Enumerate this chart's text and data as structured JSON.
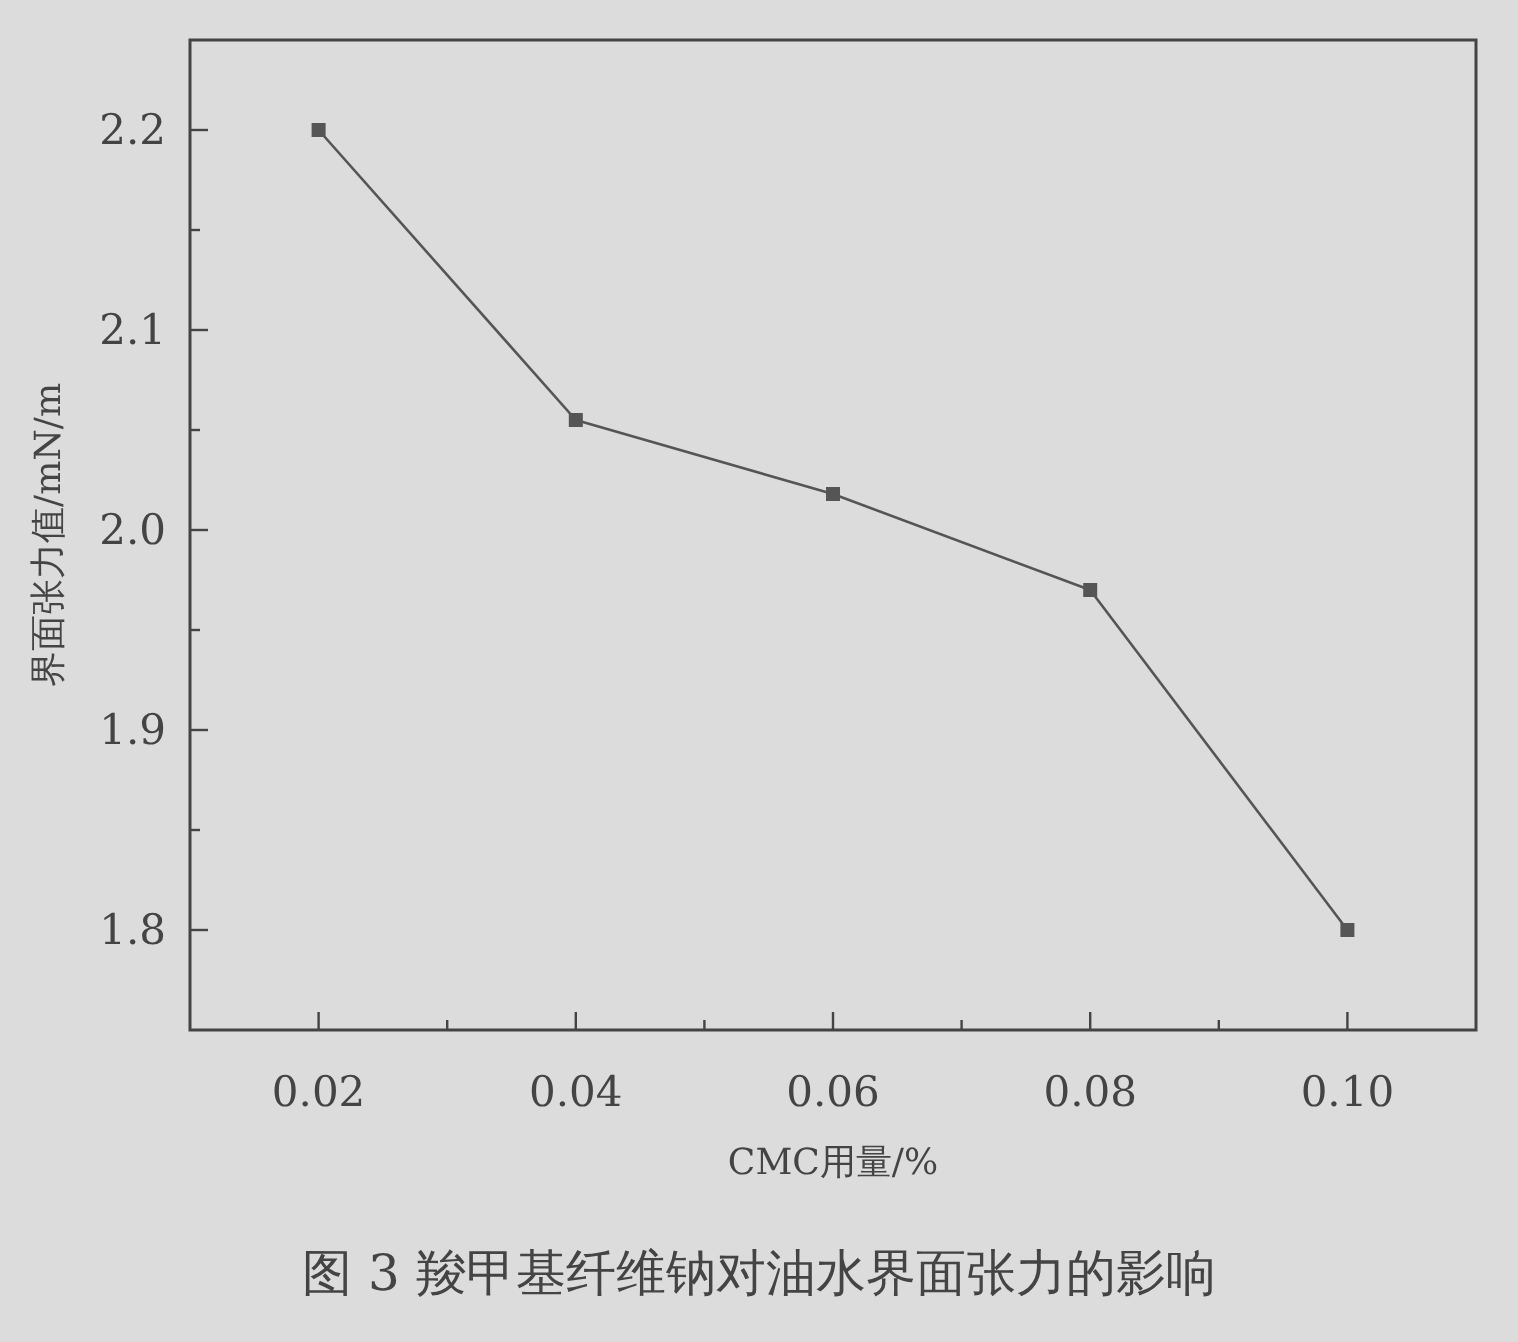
{
  "chart_data": {
    "type": "line",
    "title": "图 3 羧甲基纤维钠对油水界面张力的影响",
    "xlabel": "CMC用量/%",
    "ylabel": "界面张力值/mN/m",
    "x": [
      0.02,
      0.04,
      0.06,
      0.08,
      0.1
    ],
    "series": [
      {
        "color": "#555555",
        "values": [
          2.2,
          2.055,
          2.018,
          1.97,
          1.8
        ]
      }
    ],
    "marker": "square",
    "line_style": "solid",
    "grid": false,
    "xlim": [
      0.01,
      0.11
    ],
    "xticks": [
      {
        "value": 0.02,
        "label": "0.02"
      },
      {
        "value": 0.03,
        "label": null
      },
      {
        "value": 0.04,
        "label": "0.04"
      },
      {
        "value": 0.05,
        "label": null
      },
      {
        "value": 0.06,
        "label": "0.06"
      },
      {
        "value": 0.07,
        "label": null
      },
      {
        "value": 0.08,
        "label": "0.08"
      },
      {
        "value": 0.09,
        "label": null
      },
      {
        "value": 0.1,
        "label": "0.10"
      }
    ],
    "ylim": [
      1.75,
      2.245
    ],
    "yticks": [
      {
        "value": 1.8,
        "label": "1.8"
      },
      {
        "value": 1.85,
        "label": null
      },
      {
        "value": 1.9,
        "label": "1.9"
      },
      {
        "value": 1.95,
        "label": null
      },
      {
        "value": 2.0,
        "label": "2.0"
      },
      {
        "value": 2.05,
        "label": null
      },
      {
        "value": 2.1,
        "label": "2.1"
      },
      {
        "value": 2.15,
        "label": null
      },
      {
        "value": 2.2,
        "label": "2.2"
      }
    ]
  }
}
